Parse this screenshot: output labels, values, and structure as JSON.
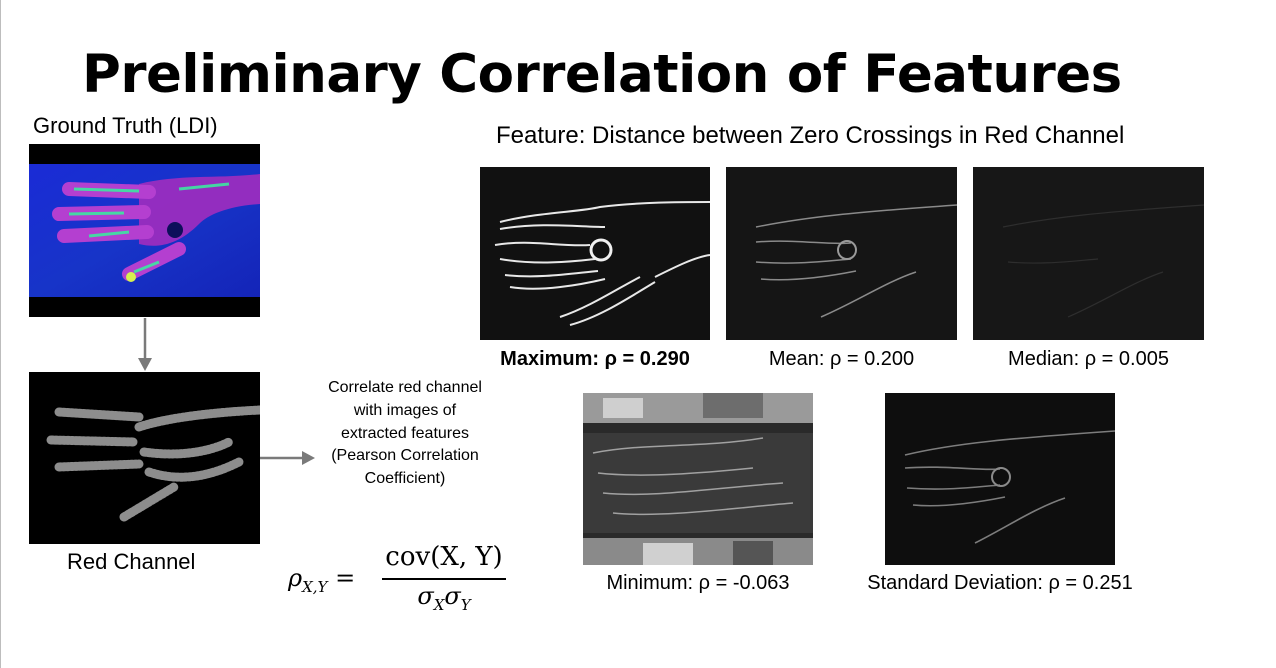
{
  "slide": {
    "title": "Preliminary Correlation of Features",
    "left": {
      "ground_truth_label": "Ground Truth (LDI)",
      "red_channel_label": "Red Channel"
    },
    "note": "Correlate red channel with images of extracted features (Pearson Correlation Coefficient)",
    "formula": {
      "lhs": "ρ",
      "lhs_sub": "X,Y",
      "eq": "=",
      "numerator": "cov(X, Y)",
      "denominator": "σ",
      "den_sub1": "X",
      "den_mid": "σ",
      "den_sub2": "Y"
    },
    "feature_heading": "Feature: Distance between Zero Crossings in Red Channel",
    "captions": {
      "maximum": "Maximum: ρ = 0.290",
      "mean": "Mean: ρ = 0.200",
      "median": "Median: ρ = 0.005",
      "minimum": "Minimum: ρ = -0.063",
      "std": "Standard Deviation: ρ = 0.251"
    }
  }
}
